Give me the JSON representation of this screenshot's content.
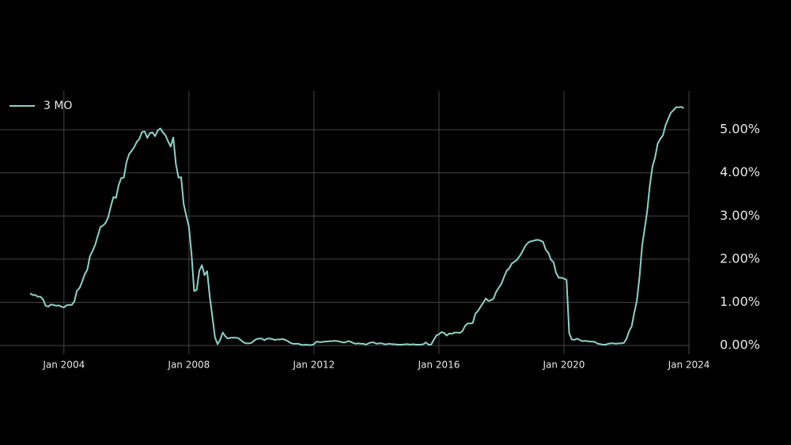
{
  "chart_data": {
    "type": "line",
    "x": [
      "2002-12",
      "2003-01",
      "2003-02",
      "2003-03",
      "2003-04",
      "2003-05",
      "2003-06",
      "2003-07",
      "2003-08",
      "2003-09",
      "2003-10",
      "2003-11",
      "2003-12",
      "2004-01",
      "2004-02",
      "2004-03",
      "2004-04",
      "2004-05",
      "2004-06",
      "2004-07",
      "2004-08",
      "2004-09",
      "2004-10",
      "2004-11",
      "2004-12",
      "2005-01",
      "2005-02",
      "2005-03",
      "2005-04",
      "2005-05",
      "2005-06",
      "2005-07",
      "2005-08",
      "2005-09",
      "2005-10",
      "2005-11",
      "2005-12",
      "2006-01",
      "2006-02",
      "2006-03",
      "2006-04",
      "2006-05",
      "2006-06",
      "2006-07",
      "2006-08",
      "2006-09",
      "2006-10",
      "2006-11",
      "2006-12",
      "2007-01",
      "2007-02",
      "2007-03",
      "2007-04",
      "2007-05",
      "2007-06",
      "2007-07",
      "2007-08",
      "2007-09",
      "2007-10",
      "2007-11",
      "2007-12",
      "2008-01",
      "2008-02",
      "2008-03",
      "2008-04",
      "2008-05",
      "2008-06",
      "2008-07",
      "2008-08",
      "2008-09",
      "2008-10",
      "2008-11",
      "2008-12",
      "2009-01",
      "2009-02",
      "2009-03",
      "2009-04",
      "2009-05",
      "2009-06",
      "2009-07",
      "2009-08",
      "2009-09",
      "2009-10",
      "2009-11",
      "2009-12",
      "2010-01",
      "2010-02",
      "2010-03",
      "2010-04",
      "2010-05",
      "2010-06",
      "2010-07",
      "2010-08",
      "2010-09",
      "2010-10",
      "2010-11",
      "2010-12",
      "2011-01",
      "2011-02",
      "2011-03",
      "2011-04",
      "2011-05",
      "2011-06",
      "2011-07",
      "2011-08",
      "2011-09",
      "2011-10",
      "2011-11",
      "2011-12",
      "2012-01",
      "2012-02",
      "2012-03",
      "2012-04",
      "2012-05",
      "2012-06",
      "2012-07",
      "2012-08",
      "2012-09",
      "2012-10",
      "2012-11",
      "2012-12",
      "2013-01",
      "2013-02",
      "2013-03",
      "2013-04",
      "2013-05",
      "2013-06",
      "2013-07",
      "2013-08",
      "2013-09",
      "2013-10",
      "2013-11",
      "2013-12",
      "2014-01",
      "2014-02",
      "2014-03",
      "2014-04",
      "2014-05",
      "2014-06",
      "2014-07",
      "2014-08",
      "2014-09",
      "2014-10",
      "2014-11",
      "2014-12",
      "2015-01",
      "2015-02",
      "2015-03",
      "2015-04",
      "2015-05",
      "2015-06",
      "2015-07",
      "2015-08",
      "2015-09",
      "2015-10",
      "2015-11",
      "2015-12",
      "2016-01",
      "2016-02",
      "2016-03",
      "2016-04",
      "2016-05",
      "2016-06",
      "2016-07",
      "2016-08",
      "2016-09",
      "2016-10",
      "2016-11",
      "2016-12",
      "2017-01",
      "2017-02",
      "2017-03",
      "2017-04",
      "2017-05",
      "2017-06",
      "2017-07",
      "2017-08",
      "2017-09",
      "2017-10",
      "2017-11",
      "2017-12",
      "2018-01",
      "2018-02",
      "2018-03",
      "2018-04",
      "2018-05",
      "2018-06",
      "2018-07",
      "2018-08",
      "2018-09",
      "2018-10",
      "2018-11",
      "2018-12",
      "2019-01",
      "2019-02",
      "2019-03",
      "2019-04",
      "2019-05",
      "2019-06",
      "2019-07",
      "2019-08",
      "2019-09",
      "2019-10",
      "2019-11",
      "2019-12",
      "2020-01",
      "2020-02",
      "2020-03",
      "2020-04",
      "2020-05",
      "2020-06",
      "2020-07",
      "2020-08",
      "2020-09",
      "2020-10",
      "2020-11",
      "2020-12",
      "2021-01",
      "2021-02",
      "2021-03",
      "2021-04",
      "2021-05",
      "2021-06",
      "2021-07",
      "2021-08",
      "2021-09",
      "2021-10",
      "2021-11",
      "2021-12",
      "2022-01",
      "2022-02",
      "2022-03",
      "2022-04",
      "2022-05",
      "2022-06",
      "2022-07",
      "2022-08",
      "2022-09",
      "2022-10",
      "2022-11",
      "2022-12",
      "2023-01",
      "2023-02",
      "2023-03",
      "2023-04",
      "2023-05",
      "2023-06",
      "2023-07",
      "2023-08",
      "2023-09",
      "2023-10",
      "2023-11"
    ],
    "series": [
      {
        "name": "3 MO",
        "color": "#8dd3c7",
        "values": [
          1.21,
          1.17,
          1.17,
          1.13,
          1.13,
          1.07,
          0.92,
          0.9,
          0.95,
          0.94,
          0.92,
          0.93,
          0.9,
          0.88,
          0.93,
          0.94,
          0.94,
          1.02,
          1.27,
          1.33,
          1.48,
          1.65,
          1.76,
          2.07,
          2.19,
          2.33,
          2.54,
          2.74,
          2.78,
          2.84,
          2.97,
          3.22,
          3.44,
          3.42,
          3.71,
          3.88,
          3.89,
          4.24,
          4.43,
          4.51,
          4.6,
          4.72,
          4.79,
          4.95,
          4.96,
          4.81,
          4.92,
          4.94,
          4.85,
          4.98,
          5.03,
          4.94,
          4.87,
          4.73,
          4.61,
          4.82,
          4.2,
          3.89,
          3.9,
          3.27,
          3.0,
          2.75,
          2.12,
          1.26,
          1.29,
          1.73,
          1.86,
          1.63,
          1.72,
          1.13,
          0.67,
          0.19,
          0.03,
          0.13,
          0.3,
          0.21,
          0.16,
          0.18,
          0.18,
          0.18,
          0.17,
          0.12,
          0.07,
          0.05,
          0.05,
          0.06,
          0.11,
          0.15,
          0.16,
          0.16,
          0.12,
          0.16,
          0.16,
          0.15,
          0.13,
          0.14,
          0.14,
          0.15,
          0.13,
          0.1,
          0.06,
          0.04,
          0.04,
          0.04,
          0.02,
          0.01,
          0.02,
          0.01,
          0.01,
          0.03,
          0.09,
          0.08,
          0.08,
          0.09,
          0.09,
          0.1,
          0.1,
          0.11,
          0.1,
          0.09,
          0.07,
          0.07,
          0.1,
          0.09,
          0.06,
          0.04,
          0.05,
          0.04,
          0.04,
          0.02,
          0.05,
          0.07,
          0.07,
          0.04,
          0.05,
          0.05,
          0.03,
          0.03,
          0.04,
          0.03,
          0.03,
          0.02,
          0.02,
          0.02,
          0.03,
          0.03,
          0.02,
          0.03,
          0.02,
          0.02,
          0.02,
          0.03,
          0.07,
          0.02,
          0.02,
          0.13,
          0.23,
          0.26,
          0.31,
          0.29,
          0.23,
          0.28,
          0.27,
          0.3,
          0.3,
          0.29,
          0.33,
          0.45,
          0.51,
          0.51,
          0.52,
          0.74,
          0.8,
          0.9,
          0.99,
          1.09,
          1.03,
          1.05,
          1.09,
          1.25,
          1.34,
          1.43,
          1.59,
          1.73,
          1.79,
          1.9,
          1.94,
          1.99,
          2.07,
          2.17,
          2.29,
          2.37,
          2.41,
          2.42,
          2.44,
          2.45,
          2.43,
          2.4,
          2.22,
          2.15,
          1.99,
          1.93,
          1.68,
          1.57,
          1.57,
          1.55,
          1.52,
          0.29,
          0.14,
          0.13,
          0.16,
          0.13,
          0.1,
          0.11,
          0.1,
          0.09,
          0.09,
          0.08,
          0.04,
          0.03,
          0.02,
          0.02,
          0.04,
          0.05,
          0.05,
          0.04,
          0.05,
          0.05,
          0.06,
          0.15,
          0.33,
          0.44,
          0.76,
          1.04,
          1.58,
          2.3,
          2.71,
          3.13,
          3.72,
          4.15,
          4.36,
          4.68,
          4.79,
          4.87,
          5.1,
          5.25,
          5.39,
          5.45,
          5.52,
          5.52,
          5.53,
          5.5
        ]
      }
    ],
    "xlim": [
      "2002-12",
      "2024-01"
    ],
    "xticks": [
      {
        "value": "2004-01",
        "label": "Jan 2004"
      },
      {
        "value": "2008-01",
        "label": "Jan 2008"
      },
      {
        "value": "2012-01",
        "label": "Jan 2012"
      },
      {
        "value": "2016-01",
        "label": "Jan 2016"
      },
      {
        "value": "2020-01",
        "label": "Jan 2020"
      },
      {
        "value": "2024-01",
        "label": "Jan 2024"
      }
    ],
    "ylim": [
      -0.2,
      5.9
    ],
    "yticks": [
      {
        "value": 0,
        "label": "0.00%"
      },
      {
        "value": 1,
        "label": "1.00%"
      },
      {
        "value": 2,
        "label": "2.00%"
      },
      {
        "value": 3,
        "label": "3.00%"
      },
      {
        "value": 4,
        "label": "4.00%"
      },
      {
        "value": 5,
        "label": "5.00%"
      }
    ],
    "grid": true,
    "legend": "upper-left"
  }
}
